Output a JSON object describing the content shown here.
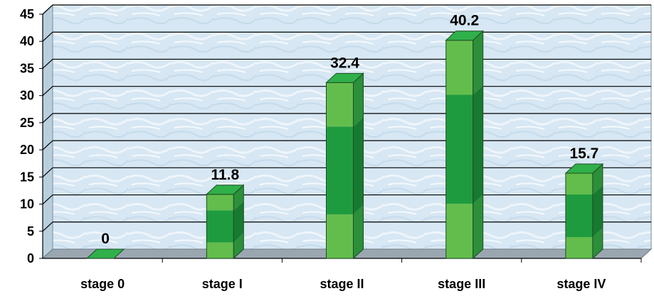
{
  "chart_data": {
    "type": "bar",
    "title": "",
    "xlabel": "",
    "ylabel": "",
    "categories": [
      "stage 0",
      "stage I",
      "stage II",
      "stage III",
      "stage IV"
    ],
    "values": [
      0,
      11.8,
      32.4,
      40.2,
      15.7
    ],
    "data_labels": [
      "0",
      "11.8",
      "32.4",
      "40.2",
      "15.7"
    ],
    "ylim": [
      0,
      45
    ],
    "yticks": [
      "0",
      "5",
      "10",
      "15",
      "20",
      "25",
      "30",
      "35",
      "40",
      "45"
    ],
    "grid": true,
    "legend": "none",
    "style": "3d-column",
    "colors": {
      "bar_light": "#63bd4c",
      "bar_dark": "#1f9b3f",
      "bar_side": "#177a30",
      "bar_top": "#2fb049",
      "outline": "#1d4d24",
      "background": "#dceaf4",
      "grid": "#000000",
      "text": "#000000"
    }
  }
}
